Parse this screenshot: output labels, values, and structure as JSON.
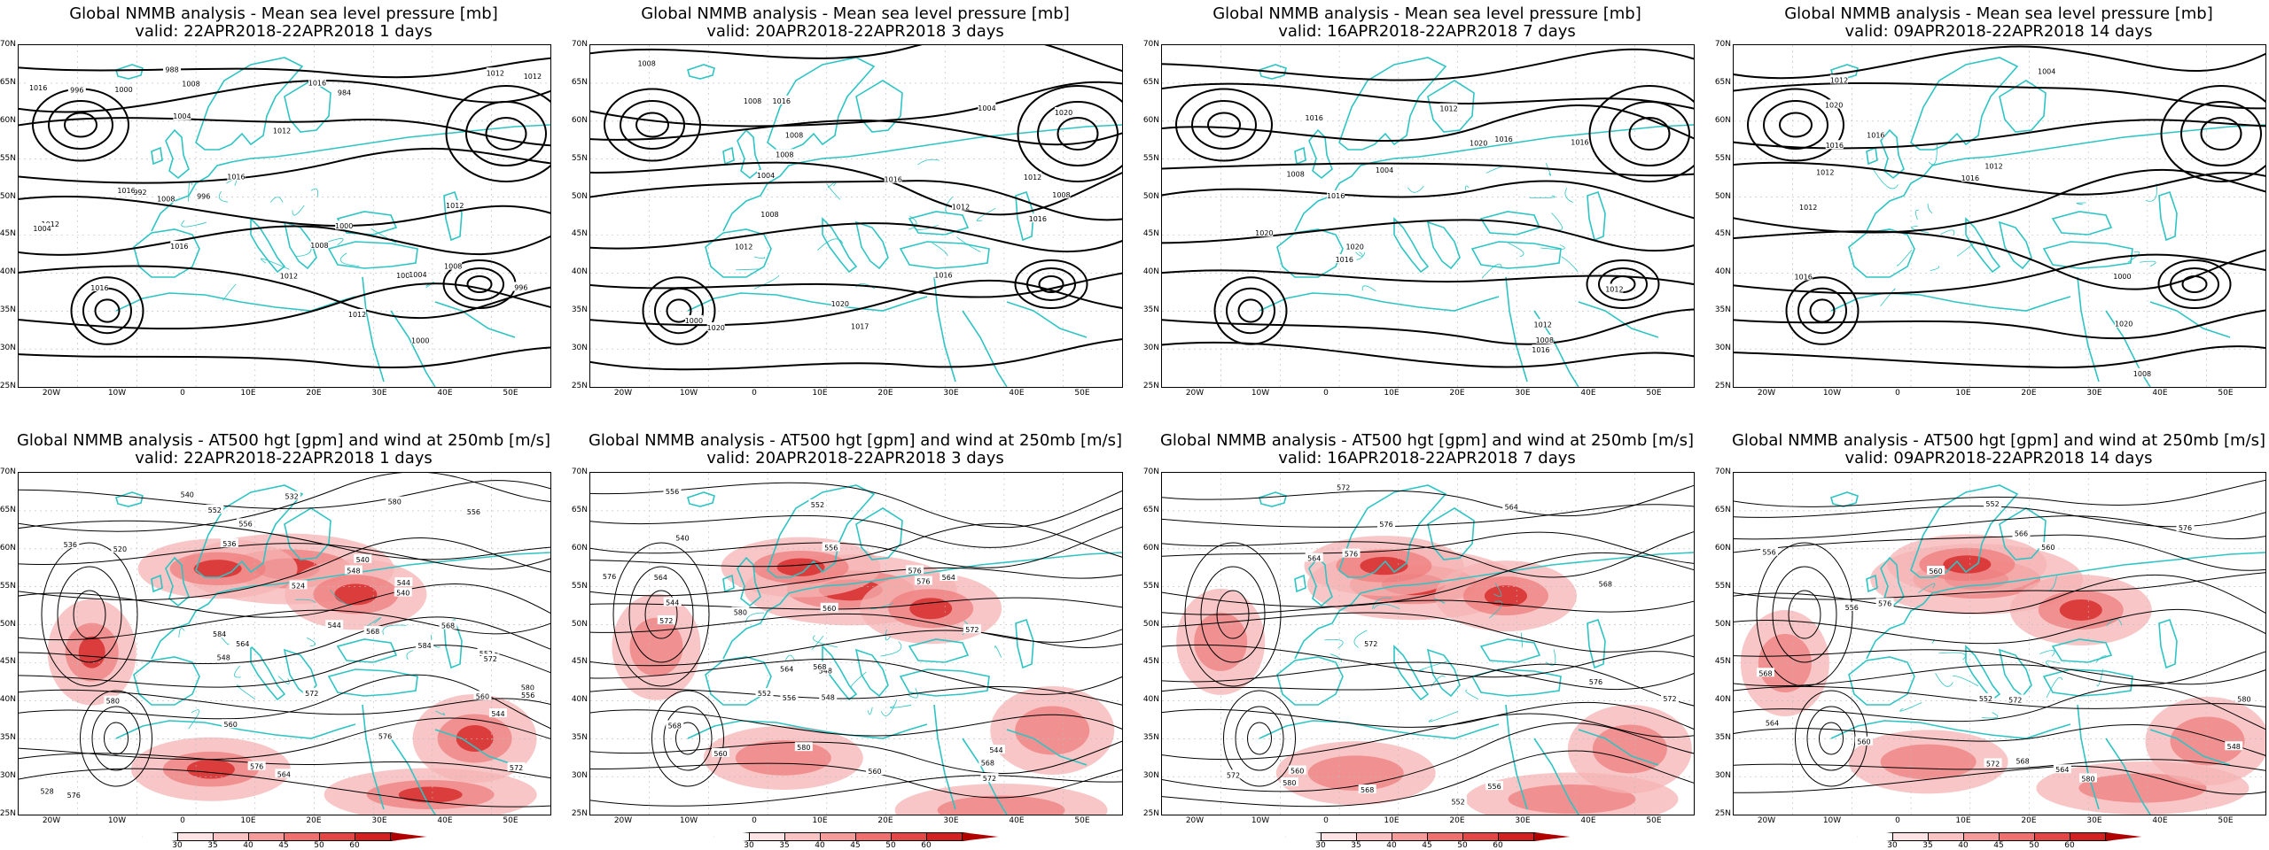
{
  "panels": [
    {
      "row": "top",
      "title_line1": "Global NMMB analysis - Mean sea level pressure [mb]",
      "title_line2": "valid: 22APR2018-22APR2018   1 days",
      "contour_labels": [
        "1012",
        "1008",
        "1004",
        "1000",
        "996",
        "1012",
        "1016",
        "1008",
        "1004",
        "1000",
        "996",
        "992",
        "988",
        "984",
        "1016",
        "1012",
        "1008",
        "1004",
        "1000",
        "996",
        "1016",
        "1012",
        "1016",
        "1012",
        "1008",
        "1016",
        "1012",
        "1016",
        "1012",
        "1008"
      ]
    },
    {
      "row": "top",
      "title_line1": "Global NMMB analysis - Mean sea level pressure [mb]",
      "title_line2": "valid: 20APR2018-22APR2018   3 days",
      "contour_labels": [
        "1008",
        "1008",
        "1012",
        "1016",
        "1008",
        "1004",
        "1004",
        "1008",
        "1020",
        "1000",
        "1020",
        "1017",
        "1016",
        "1020",
        "1016",
        "1012",
        "1008",
        "1008",
        "1016",
        "1012"
      ]
    },
    {
      "row": "top",
      "title_line1": "Global NMMB analysis - Mean sea level pressure [mb]",
      "title_line2": "valid: 16APR2018-22APR2018   7 days",
      "contour_labels": [
        "1016",
        "1004",
        "1016",
        "1012",
        "1008",
        "1020",
        "1008",
        "1016",
        "1012",
        "1020",
        "1020",
        "1016",
        "1012",
        "1016",
        "1016"
      ]
    },
    {
      "row": "top",
      "title_line1": "Global NMMB analysis - Mean sea level pressure [mb]",
      "title_line2": "valid: 09APR2018-22APR2018   14 days",
      "contour_labels": [
        "1020",
        "1000",
        "1004",
        "1008",
        "1012",
        "1016",
        "1012",
        "1016",
        "1020",
        "1016",
        "1012",
        "1016",
        "1012"
      ]
    },
    {
      "row": "bottom",
      "title_line1": "Global NMMB analysis - AT500 hgt [gpm] and wind at 250mb [m/s]",
      "title_line2": "valid: 22APR2018-22APR2018   1 days",
      "contour_labels": [
        "540",
        "544",
        "548",
        "552",
        "556",
        "536",
        "540",
        "544",
        "548",
        "552",
        "556",
        "560",
        "564",
        "568",
        "572",
        "564",
        "576",
        "572",
        "580",
        "568",
        "576",
        "572",
        "560",
        "584",
        "576",
        "580",
        "584",
        "556",
        "580",
        "520",
        "524",
        "528",
        "532",
        "536",
        "540",
        "544"
      ]
    },
    {
      "row": "bottom",
      "title_line1": "Global NMMB analysis - AT500 hgt [gpm] and wind at 250mb [m/s]",
      "title_line2": "valid: 20APR2018-22APR2018   3 days",
      "contour_labels": [
        "540",
        "544",
        "548",
        "552",
        "556",
        "560",
        "564",
        "568",
        "572",
        "576",
        "544",
        "548",
        "552",
        "556",
        "560",
        "564",
        "568",
        "572",
        "576",
        "580",
        "556",
        "560",
        "564",
        "568",
        "572",
        "576",
        "580"
      ]
    },
    {
      "row": "bottom",
      "title_line1": "Global NMMB analysis - AT500 hgt [gpm] and wind at 250mb [m/s]",
      "title_line2": "valid: 16APR2018-22APR2018   7 days",
      "contour_labels": [
        "552",
        "556",
        "560",
        "564",
        "568",
        "572",
        "576",
        "564",
        "568",
        "572",
        "576",
        "572",
        "576",
        "580",
        "572"
      ]
    },
    {
      "row": "bottom",
      "title_line1": "Global NMMB analysis - AT500 hgt [gpm] and wind at 250mb [m/s]",
      "title_line2": "valid: 09APR2018-22APR2018   14 days",
      "contour_labels": [
        "548",
        "552",
        "556",
        "560",
        "564",
        "566",
        "552",
        "556",
        "560",
        "564",
        "568",
        "572",
        "576",
        "580",
        "580",
        "572",
        "576",
        "560",
        "568"
      ]
    }
  ],
  "lat_labels": [
    "70N",
    "65N",
    "60N",
    "55N",
    "50N",
    "45N",
    "40N",
    "35N",
    "30N",
    "25N"
  ],
  "lon_labels": [
    "20W",
    "10W",
    "0",
    "10E",
    "20E",
    "30E",
    "40E",
    "50E"
  ],
  "colorbar": {
    "ticks": [
      "30",
      "35",
      "40",
      "45",
      "50",
      "60"
    ],
    "colors": [
      "#ffffff",
      "#fde3e3",
      "#fbc3c3",
      "#f79a9a",
      "#f07070",
      "#e44545",
      "#d42020",
      "#b00000"
    ]
  },
  "colors": {
    "coast": "#2ec4c4",
    "contour": "#000000",
    "grid": "#bbbbbb",
    "wind": "#e22b2b"
  }
}
